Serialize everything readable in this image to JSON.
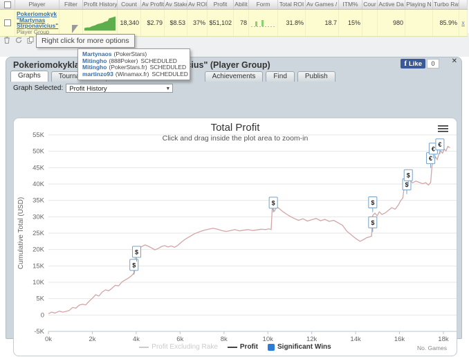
{
  "table": {
    "columns": [
      "",
      "Player",
      "Filter",
      "Profit History",
      "Count",
      "Av Profit",
      "Av Stake",
      "Av ROI",
      "Profit",
      "Abilit",
      "Form",
      "Total ROI",
      "Av Games / D",
      "ITM%",
      "Cour",
      "Active Da",
      "Playing N",
      "Turbo Rati",
      ""
    ],
    "row": {
      "player": "Pokeriomokyk \"Martynas Strponavicius\"",
      "player_type": "Player Group",
      "count": "18,340",
      "av_profit": "$2.79",
      "av_stake": "$8.53",
      "av_roi": "37%",
      "profit": "$51,102",
      "ability": "78",
      "total_roi": "31.8%",
      "av_games_day": "18.7",
      "itm_pct": "15%",
      "cour": "",
      "active_days": "980",
      "playing_now": "",
      "turbo_ratio": "85.9%",
      "remove_label": "x",
      "profit_history_points": [
        [
          0,
          20
        ],
        [
          4,
          19
        ],
        [
          8,
          19
        ],
        [
          12,
          17
        ],
        [
          16,
          16
        ],
        [
          20,
          14
        ],
        [
          24,
          13
        ],
        [
          28,
          12
        ],
        [
          32,
          10
        ],
        [
          36,
          9
        ],
        [
          38,
          5
        ],
        [
          42,
          4
        ],
        [
          45,
          3
        ],
        [
          48,
          2
        ]
      ],
      "form_bars": [
        7,
        9
      ]
    }
  },
  "tooltip_text": "Right click for more options",
  "dropdown_items": [
    {
      "name": "Martynaos",
      "site": "(PokerStars)",
      "status": ""
    },
    {
      "name": "Mitingho",
      "site": "(888Poker)",
      "status": "SCHEDULED"
    },
    {
      "name": "Mitingho",
      "site": "(PokerStars.fr)",
      "status": "SCHEDULED"
    },
    {
      "name": "martinzo93",
      "site": "(Winamax.fr)",
      "status": "SCHEDULED"
    }
  ],
  "panel": {
    "title": "Pokeriomokykla.com \"Martynas Strponavicius\" (Player Group)",
    "tabs": [
      "Graphs",
      "Tournaments",
      "Achievements",
      "Find",
      "Publish"
    ],
    "active_tab": "Graphs",
    "like_label": "Like",
    "like_count": "0",
    "close_label": "✕",
    "graph_selected_label": "Graph Selected:",
    "graph_selected_value": "Profit History"
  },
  "chart_data": {
    "type": "line",
    "title": "Total Profit",
    "subtitle": "Click and drag inside the plot area to zoom-in",
    "ylabel": "Cumulative Total (USD)",
    "xlabel": "No. Games",
    "x_ticks": [
      "0k",
      "2k",
      "4k",
      "6k",
      "8k",
      "10k",
      "12k",
      "14k",
      "16k",
      "18k"
    ],
    "y_ticks": [
      "55K",
      "50K",
      "45K",
      "40K",
      "35K",
      "30K",
      "25K",
      "20K",
      "15K",
      "10K",
      "5K",
      "0",
      "-5K"
    ],
    "xlim": [
      0,
      18.6
    ],
    "ylim": [
      -5,
      55
    ],
    "grid": "horizontal-only",
    "legend_position": "bottom-center",
    "units": {
      "x": "games (thousands)",
      "y": "USD (thousands)"
    },
    "series": [
      {
        "name": "Profit Excluding Rake",
        "color": "#cccccc",
        "hidden": true,
        "points": []
      },
      {
        "name": "Profit",
        "color": "#d4a5a5",
        "hidden": false,
        "points": [
          [
            0,
            0.4
          ],
          [
            0.15,
            0.9
          ],
          [
            0.3,
            0.6
          ],
          [
            0.5,
            1.2
          ],
          [
            0.65,
            0.9
          ],
          [
            0.8,
            1.1
          ],
          [
            0.95,
            1.4
          ],
          [
            1.1,
            2.3
          ],
          [
            1.25,
            2.1
          ],
          [
            1.4,
            3.0
          ],
          [
            1.55,
            3.3
          ],
          [
            1.7,
            3.1
          ],
          [
            1.85,
            4.2
          ],
          [
            2.0,
            5.1
          ],
          [
            2.15,
            6.2
          ],
          [
            2.3,
            5.8
          ],
          [
            2.45,
            7.0
          ],
          [
            2.6,
            7.7
          ],
          [
            2.75,
            7.4
          ],
          [
            2.9,
            8.2
          ],
          [
            3.05,
            9.1
          ],
          [
            3.2,
            8.9
          ],
          [
            3.35,
            10.1
          ],
          [
            3.5,
            10.7
          ],
          [
            3.65,
            11.3
          ],
          [
            3.8,
            12.1
          ],
          [
            3.92,
            13.0
          ],
          [
            3.98,
            19.4
          ],
          [
            4.1,
            20.2
          ],
          [
            4.25,
            20.9
          ],
          [
            4.4,
            21.4
          ],
          [
            4.55,
            21.0
          ],
          [
            4.7,
            20.5
          ],
          [
            4.85,
            19.9
          ],
          [
            5.0,
            20.3
          ],
          [
            5.15,
            20.9
          ],
          [
            5.3,
            21.2
          ],
          [
            5.45,
            20.8
          ],
          [
            5.6,
            21.1
          ],
          [
            5.75,
            20.7
          ],
          [
            5.9,
            21.3
          ],
          [
            6.05,
            22.2
          ],
          [
            6.2,
            23.0
          ],
          [
            6.35,
            23.6
          ],
          [
            6.5,
            24.2
          ],
          [
            6.65,
            24.8
          ],
          [
            6.8,
            25.2
          ],
          [
            6.95,
            25.6
          ],
          [
            7.1,
            25.9
          ],
          [
            7.3,
            26.2
          ],
          [
            7.5,
            26.5
          ],
          [
            7.7,
            26.2
          ],
          [
            7.9,
            25.8
          ],
          [
            8.1,
            25.5
          ],
          [
            8.3,
            25.8
          ],
          [
            8.5,
            26.1
          ],
          [
            8.7,
            25.7
          ],
          [
            8.9,
            25.9
          ],
          [
            9.1,
            26.1
          ],
          [
            9.3,
            25.8
          ],
          [
            9.5,
            26.0
          ],
          [
            9.7,
            26.2
          ],
          [
            9.9,
            26.1
          ],
          [
            10.05,
            26.3
          ],
          [
            10.15,
            26.1
          ],
          [
            10.2,
            32.5
          ],
          [
            10.3,
            31.7
          ],
          [
            10.4,
            33.1
          ],
          [
            10.55,
            32.3
          ],
          [
            10.7,
            31.5
          ],
          [
            10.85,
            30.8
          ],
          [
            11.0,
            30.2
          ],
          [
            11.2,
            29.5
          ],
          [
            11.4,
            28.9
          ],
          [
            11.6,
            29.4
          ],
          [
            11.8,
            28.7
          ],
          [
            12.0,
            29.1
          ],
          [
            12.2,
            29.5
          ],
          [
            12.4,
            28.8
          ],
          [
            12.6,
            29.2
          ],
          [
            12.8,
            28.6
          ],
          [
            13.0,
            28.9
          ],
          [
            13.2,
            28.2
          ],
          [
            13.4,
            27.4
          ],
          [
            13.6,
            25.6
          ],
          [
            13.8,
            24.5
          ],
          [
            14.0,
            23.4
          ],
          [
            14.2,
            22.5
          ],
          [
            14.35,
            23.0
          ],
          [
            14.5,
            23.6
          ],
          [
            14.65,
            23.9
          ],
          [
            14.73,
            24.1
          ],
          [
            14.78,
            30.4
          ],
          [
            14.88,
            31.1
          ],
          [
            14.98,
            30.3
          ],
          [
            15.08,
            31.5
          ],
          [
            15.2,
            30.7
          ],
          [
            15.35,
            31.2
          ],
          [
            15.5,
            32.0
          ],
          [
            15.65,
            32.8
          ],
          [
            15.8,
            32.3
          ],
          [
            15.95,
            33.6
          ],
          [
            16.05,
            34.9
          ],
          [
            16.15,
            35.7
          ],
          [
            16.22,
            39.4
          ],
          [
            16.32,
            40.5
          ],
          [
            16.45,
            41.1
          ],
          [
            16.6,
            40.4
          ],
          [
            16.75,
            40.9
          ],
          [
            16.9,
            40.5
          ],
          [
            17.05,
            40.1
          ],
          [
            17.2,
            40.4
          ],
          [
            17.32,
            39.7
          ],
          [
            17.42,
            40.5
          ],
          [
            17.48,
            45.6
          ],
          [
            17.56,
            47.1
          ],
          [
            17.64,
            48.3
          ],
          [
            17.72,
            47.5
          ],
          [
            17.8,
            49.3
          ],
          [
            17.88,
            50.1
          ],
          [
            17.96,
            49.4
          ],
          [
            18.04,
            50.7
          ],
          [
            18.12,
            50.1
          ],
          [
            18.2,
            51.5
          ],
          [
            18.3,
            51.1
          ]
        ]
      }
    ],
    "markers": [
      {
        "symbol": "$",
        "x": 3.9,
        "y": 15.3
      },
      {
        "symbol": "$",
        "x": 4.02,
        "y": 19.3
      },
      {
        "symbol": "$",
        "x": 10.25,
        "y": 34.3
      },
      {
        "symbol": "$",
        "x": 14.78,
        "y": 28.3
      },
      {
        "symbol": "$",
        "x": 14.78,
        "y": 34.4
      },
      {
        "symbol": "$",
        "x": 16.33,
        "y": 39.9
      },
      {
        "symbol": "$",
        "x": 16.4,
        "y": 42.7
      },
      {
        "symbol": "€",
        "x": 17.42,
        "y": 47.9
      },
      {
        "symbol": "€",
        "x": 17.54,
        "y": 50.8
      },
      {
        "symbol": "€",
        "x": 17.84,
        "y": 52.1
      }
    ],
    "legend": [
      {
        "label": "Profit Excluding Rake",
        "swatch": "line",
        "color": "#cccccc",
        "disabled": true
      },
      {
        "label": "Profit",
        "swatch": "line",
        "color": "#444444",
        "disabled": false
      },
      {
        "label": "Significant Wins",
        "swatch": "square",
        "color": "#2b7cd8",
        "disabled": false
      }
    ]
  }
}
